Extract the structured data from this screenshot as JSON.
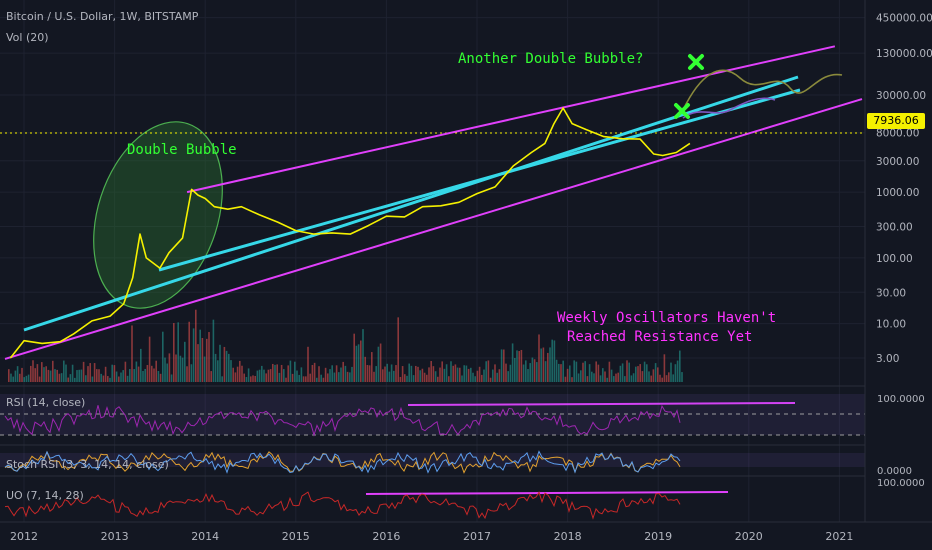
{
  "header": {
    "symbol_line": "Bitcoin / U.S. Dollar, 1W, BITSTAMP",
    "volume_label": "Vol (20)"
  },
  "current_price": "7936.06",
  "annotations": {
    "another_double_bubble": "Another Double Bubble?",
    "double_bubble": "Double Bubble",
    "oscillators_line1": "Weekly Oscillators Haven't",
    "oscillators_line2": "Reached Resistance Yet"
  },
  "panes": {
    "rsi_label": "RSI (14, close)",
    "stoch_label": "Stoch RSI (3, 3, 14, 14, close)",
    "uo_label": "UO (7, 14, 28)",
    "rsi_axis_label": "100.0000",
    "stoch_axis_label": "0.0000",
    "uo_axis_label": "100.0000"
  },
  "colors": {
    "background": "#131722",
    "price_line": "#f5f100",
    "channel": "#e040fb",
    "trend": "#36d8e8",
    "annotation_green": "#33ff33",
    "annotation_magenta": "#ff33ff",
    "bubble_fill": "#2e7d32",
    "vol_up": "#26a69a",
    "vol_down": "#ef5350",
    "rsi": "#9c27b0",
    "uo": "#c62828"
  },
  "chart_data": {
    "type": "line",
    "title": "Bitcoin / U.S. Dollar, 1W, BITSTAMP",
    "y_scale": "log",
    "ylim": [
      1.5,
      450000
    ],
    "y_ticks": [
      "450000.00",
      "130000.00",
      "30000.00",
      "8000.00",
      "3000.00",
      "1000.00",
      "300.00",
      "100.00",
      "30.00",
      "10.00",
      "3.00"
    ],
    "x_ticks": [
      "2012",
      "2013",
      "2014",
      "2015",
      "2016",
      "2017",
      "2018",
      "2019",
      "2020",
      "2021"
    ],
    "series": [
      {
        "type": "line",
        "x": [
          2011.85,
          2012.0,
          2012.2,
          2012.4,
          2012.55,
          2012.75,
          2012.95,
          2013.1,
          2013.2,
          2013.28,
          2013.35,
          2013.5,
          2013.6,
          2013.75,
          2013.85,
          2013.92,
          2014.0,
          2014.1,
          2014.25,
          2014.4,
          2014.6,
          2014.8,
          2015.0,
          2015.2,
          2015.4,
          2015.6,
          2015.8,
          2016.0,
          2016.2,
          2016.4,
          2016.6,
          2016.8,
          2017.0,
          2017.2,
          2017.4,
          2017.6,
          2017.75,
          2017.85,
          2017.95,
          2018.05,
          2018.2,
          2018.4,
          2018.6,
          2018.8,
          2018.95,
          2019.05,
          2019.2,
          2019.35
        ],
        "values": [
          3,
          5.5,
          5,
          5.3,
          7,
          11,
          13,
          20,
          50,
          230,
          100,
          70,
          120,
          200,
          1100,
          900,
          800,
          600,
          550,
          600,
          450,
          350,
          260,
          230,
          240,
          230,
          310,
          430,
          420,
          600,
          620,
          700,
          950,
          1200,
          2500,
          4000,
          5500,
          11000,
          19000,
          11000,
          9000,
          7000,
          6500,
          6400,
          3800,
          3600,
          4000,
          5500
        ]
      }
    ]
  }
}
